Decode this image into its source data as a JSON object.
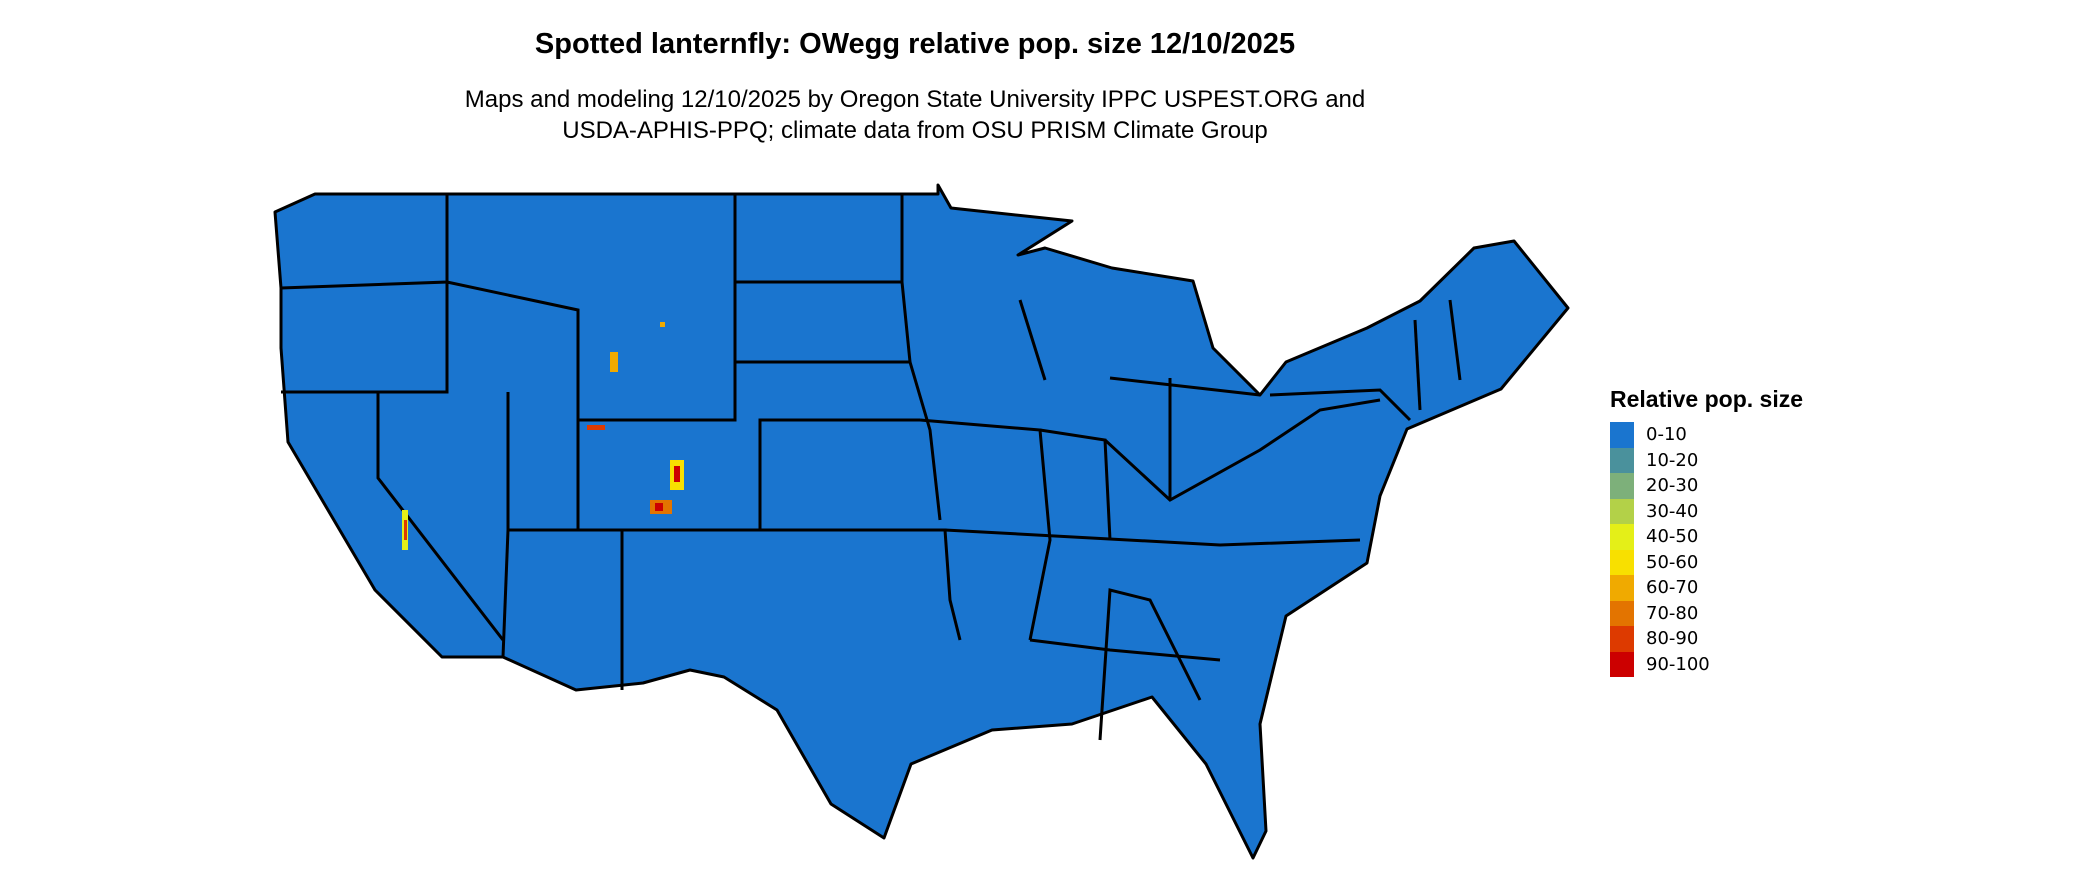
{
  "header": {
    "title": "Spotted lanternfly: OWegg relative pop. size 12/10/2025",
    "subtitle_line1": "Maps and modeling 12/10/2025 by Oregon State University IPPC USPEST.ORG and",
    "subtitle_line2": "USDA-APHIS-PPQ; climate data from OSU PRISM Climate Group"
  },
  "chart_data": {
    "type": "heatmap",
    "title": "Spotted lanternfly: OWegg relative pop. size 12/10/2025",
    "region": "Contiguous United States",
    "dominant_class": "0-10",
    "legend": {
      "title": "Relative pop. size",
      "placement": "right",
      "bins": [
        {
          "label": "0-10",
          "color": "#1a75cf"
        },
        {
          "label": "10-20",
          "color": "#4a919c"
        },
        {
          "label": "20-30",
          "color": "#7db07a"
        },
        {
          "label": "30-40",
          "color": "#b3d148"
        },
        {
          "label": "40-50",
          "color": "#e4ef18"
        },
        {
          "label": "50-60",
          "color": "#f8e000"
        },
        {
          "label": "60-70",
          "color": "#f0aa00"
        },
        {
          "label": "70-80",
          "color": "#e37400"
        },
        {
          "label": "80-90",
          "color": "#dd3a00"
        },
        {
          "label": "90-100",
          "color": "#cc0000"
        }
      ]
    }
  }
}
